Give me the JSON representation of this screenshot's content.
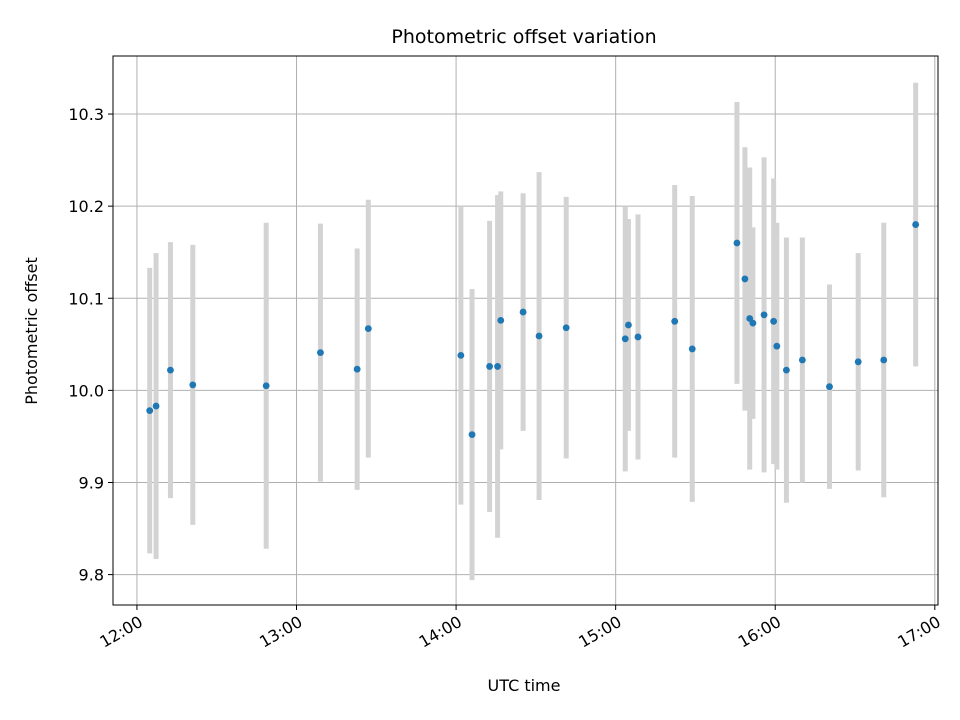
{
  "chart_data": {
    "type": "scatter",
    "title": "Photometric offset variation",
    "xlabel": "UTC time",
    "ylabel": "Photometric offset",
    "x_unit": "UTC time of day (hours)",
    "xlim": [
      11.85,
      17.02
    ],
    "ylim": [
      9.767,
      10.363
    ],
    "x_ticks": [
      {
        "value": 12,
        "label": "12:00"
      },
      {
        "value": 13,
        "label": "13:00"
      },
      {
        "value": 14,
        "label": "14:00"
      },
      {
        "value": 15,
        "label": "15:00"
      },
      {
        "value": 16,
        "label": "16:00"
      },
      {
        "value": 17,
        "label": "17:00"
      }
    ],
    "y_ticks": [
      {
        "value": 9.8,
        "label": "9.8"
      },
      {
        "value": 9.9,
        "label": "9.9"
      },
      {
        "value": 10.0,
        "label": "10.0"
      },
      {
        "value": 10.1,
        "label": "10.1"
      },
      {
        "value": 10.2,
        "label": "10.2"
      },
      {
        "value": 10.3,
        "label": "10.3"
      }
    ],
    "grid": true,
    "marker_color": "#1f77b4",
    "errorbar_color": "#d3d3d3",
    "points": [
      {
        "x": 12.08,
        "y": 9.978,
        "yerr": 0.155
      },
      {
        "x": 12.12,
        "y": 9.983,
        "yerr": 0.166
      },
      {
        "x": 12.21,
        "y": 10.022,
        "yerr": 0.139
      },
      {
        "x": 12.35,
        "y": 10.006,
        "yerr": 0.152
      },
      {
        "x": 12.81,
        "y": 10.005,
        "yerr": 0.177
      },
      {
        "x": 13.15,
        "y": 10.041,
        "yerr": 0.14
      },
      {
        "x": 13.38,
        "y": 10.023,
        "yerr": 0.131
      },
      {
        "x": 13.45,
        "y": 10.067,
        "yerr": 0.14
      },
      {
        "x": 14.03,
        "y": 10.038,
        "yerr": 0.162
      },
      {
        "x": 14.1,
        "y": 9.952,
        "yerr": 0.158
      },
      {
        "x": 14.21,
        "y": 10.026,
        "yerr": 0.158
      },
      {
        "x": 14.26,
        "y": 10.026,
        "yerr": 0.186
      },
      {
        "x": 14.28,
        "y": 10.076,
        "yerr": 0.14
      },
      {
        "x": 14.42,
        "y": 10.085,
        "yerr": 0.129
      },
      {
        "x": 14.52,
        "y": 10.059,
        "yerr": 0.178
      },
      {
        "x": 14.69,
        "y": 10.068,
        "yerr": 0.142
      },
      {
        "x": 15.06,
        "y": 10.056,
        "yerr": 0.144
      },
      {
        "x": 15.08,
        "y": 10.071,
        "yerr": 0.115
      },
      {
        "x": 15.14,
        "y": 10.058,
        "yerr": 0.133
      },
      {
        "x": 15.37,
        "y": 10.075,
        "yerr": 0.148
      },
      {
        "x": 15.48,
        "y": 10.045,
        "yerr": 0.166
      },
      {
        "x": 15.76,
        "y": 10.16,
        "yerr": 0.153
      },
      {
        "x": 15.81,
        "y": 10.121,
        "yerr": 0.143
      },
      {
        "x": 15.84,
        "y": 10.078,
        "yerr": 0.164
      },
      {
        "x": 15.86,
        "y": 10.073,
        "yerr": 0.104
      },
      {
        "x": 15.93,
        "y": 10.082,
        "yerr": 0.171
      },
      {
        "x": 15.99,
        "y": 10.075,
        "yerr": 0.155
      },
      {
        "x": 16.01,
        "y": 10.048,
        "yerr": 0.134
      },
      {
        "x": 16.07,
        "y": 10.022,
        "yerr": 0.144
      },
      {
        "x": 16.17,
        "y": 10.033,
        "yerr": 0.133
      },
      {
        "x": 16.34,
        "y": 10.004,
        "yerr": 0.111
      },
      {
        "x": 16.52,
        "y": 10.031,
        "yerr": 0.118
      },
      {
        "x": 16.68,
        "y": 10.033,
        "yerr": 0.149
      },
      {
        "x": 16.88,
        "y": 10.18,
        "yerr": 0.154
      }
    ]
  }
}
